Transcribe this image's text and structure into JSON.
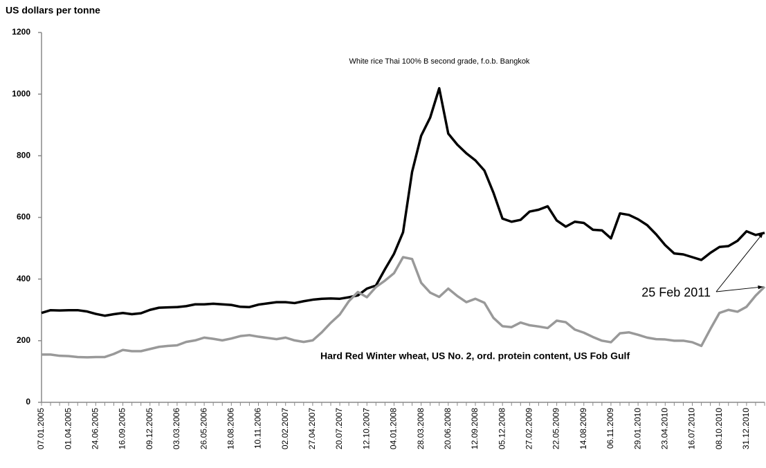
{
  "chart_data": {
    "type": "line",
    "y_label": "US dollars per tonne",
    "annotation": "25 Feb 2011",
    "categories": [
      "07.01.2005",
      null,
      null,
      "01.04.2005",
      null,
      null,
      "24.06.2005",
      null,
      null,
      "16.09.2005",
      null,
      null,
      "09.12.2005",
      null,
      null,
      "03.03.2006",
      null,
      null,
      "26.05.2006",
      null,
      null,
      "18.08.2006",
      null,
      null,
      "10.11.2006",
      null,
      null,
      "02.02.2007",
      null,
      null,
      "27.04.2007",
      null,
      null,
      "20.07.2007",
      null,
      null,
      "12.10.2007",
      null,
      null,
      "04.01.2008",
      null,
      null,
      "28.03.2008",
      null,
      null,
      "20.06.2008",
      null,
      null,
      "12.09.2008",
      null,
      null,
      "05.12.2008",
      null,
      null,
      "27.02.2009",
      null,
      null,
      "22.05.2009",
      null,
      null,
      "14.08.2009",
      null,
      null,
      "06.11.2009",
      null,
      null,
      "29.01.2010",
      null,
      null,
      "23.04.2010",
      null,
      null,
      "16.07.2010",
      null,
      null,
      "08.10.2010",
      null,
      null,
      "31.12.2010",
      null,
      null
    ],
    "series": [
      {
        "name": "White rice Thai 100% B second grade, f.o.b. Bangkok",
        "color": "#000000",
        "values": [
          290,
          299,
          298,
          299,
          299,
          295,
          287,
          281,
          286,
          290,
          286,
          289,
          300,
          307,
          308,
          309,
          312,
          318,
          318,
          320,
          318,
          316,
          310,
          309,
          317,
          321,
          325,
          325,
          322,
          328,
          333,
          336,
          337,
          336,
          341,
          347,
          369,
          379,
          432,
          482,
          552,
          748,
          865,
          924,
          1019,
          872,
          836,
          808,
          785,
          752,
          680,
          596,
          586,
          592,
          619,
          625,
          636,
          590,
          570,
          586,
          582,
          560,
          558,
          532,
          613,
          608,
          594,
          575,
          545,
          510,
          483,
          480,
          471,
          462,
          485,
          504,
          507,
          524,
          555,
          543,
          550
        ]
      },
      {
        "name": "Hard Red Winter wheat, US No. 2, ord. protein content, US Fob Gulf",
        "color": "#999999",
        "values": [
          155,
          155,
          151,
          150,
          147,
          146,
          147,
          147,
          157,
          170,
          166,
          166,
          173,
          180,
          183,
          185,
          196,
          201,
          210,
          206,
          201,
          207,
          215,
          218,
          213,
          209,
          205,
          210,
          201,
          196,
          201,
          227,
          258,
          285,
          328,
          358,
          341,
          374,
          395,
          419,
          471,
          465,
          388,
          356,
          342,
          369,
          345,
          325,
          336,
          323,
          274,
          247,
          244,
          259,
          250,
          246,
          241,
          265,
          260,
          236,
          226,
          212,
          200,
          195,
          224,
          227,
          219,
          210,
          205,
          204,
          200,
          200,
          195,
          183,
          238,
          290,
          300,
          294,
          310,
          346,
          375
        ]
      }
    ],
    "ylim": [
      0,
      1200
    ],
    "yticks": [
      0,
      200,
      400,
      600,
      800,
      1000,
      1200
    ],
    "grid": false
  }
}
